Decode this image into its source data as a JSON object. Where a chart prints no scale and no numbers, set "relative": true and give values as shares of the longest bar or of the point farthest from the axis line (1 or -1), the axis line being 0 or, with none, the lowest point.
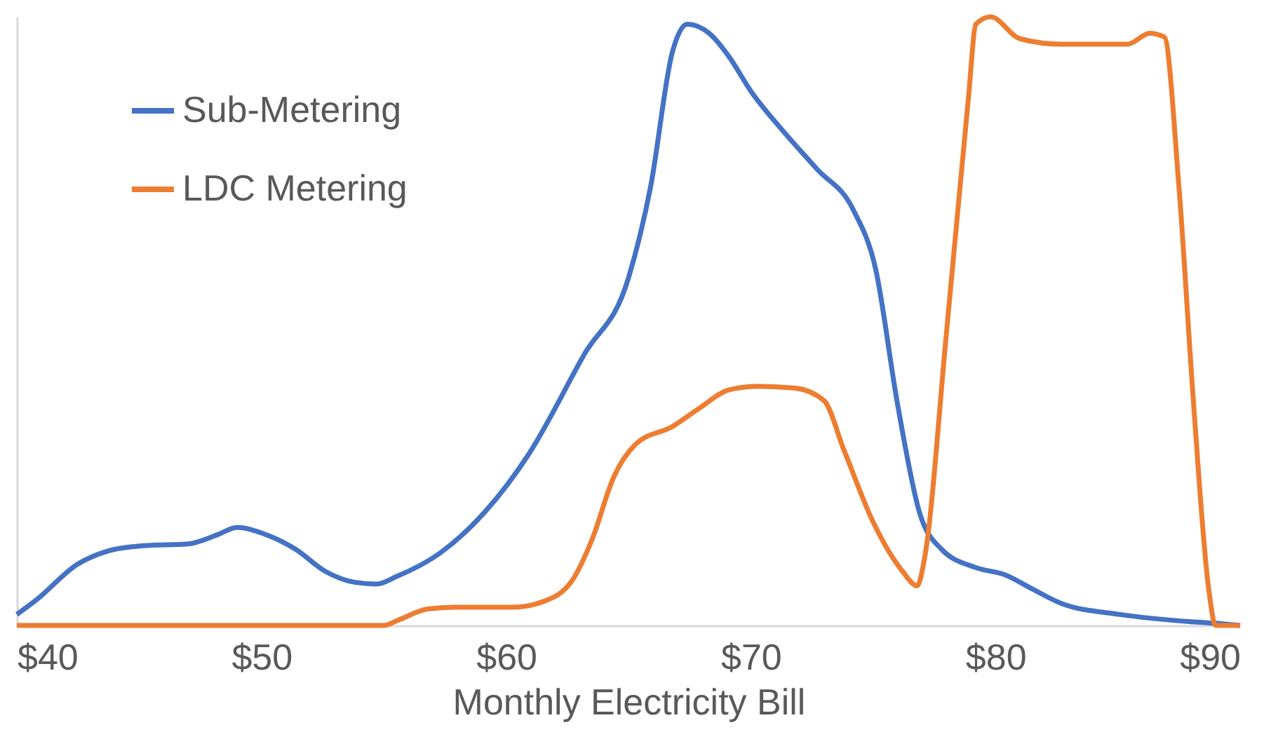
{
  "chart_data": {
    "type": "line",
    "xlabel": "Monthly Electricity Bill",
    "relative": true,
    "legend": "top left",
    "xlim": [
      40,
      90
    ],
    "xticks": [
      {
        "value": 40,
        "label": "$40"
      },
      {
        "value": 50,
        "label": "$50"
      },
      {
        "value": 60,
        "label": "$60"
      },
      {
        "value": 70,
        "label": "$70"
      },
      {
        "value": 80,
        "label": "$80"
      },
      {
        "value": 90,
        "label": "$90"
      }
    ],
    "series": [
      {
        "name": "Sub-Metering",
        "color": "#4472c4",
        "x": [
          40.0,
          40.8,
          42.5,
          43.7,
          45.2,
          47.0,
          48.2,
          49.0,
          50.2,
          51.4,
          52.6,
          53.8,
          54.7,
          55.5,
          57.3,
          59.1,
          60.9,
          63.2,
          65.0,
          65.9,
          66.8,
          67.4,
          68.3,
          69.1,
          70.0,
          71.2,
          72.7,
          74.2,
          75.1,
          76.0,
          76.9,
          77.8,
          79.2,
          80.4,
          81.5,
          82.7,
          85.1,
          88.0,
          89.2,
          90.0
        ],
        "values": [
          0.018,
          0.042,
          0.101,
          0.122,
          0.131,
          0.134,
          0.149,
          0.161,
          0.149,
          0.125,
          0.089,
          0.071,
          0.068,
          0.08,
          0.119,
          0.185,
          0.28,
          0.446,
          0.571,
          0.72,
          0.943,
          0.988,
          0.973,
          0.935,
          0.878,
          0.818,
          0.75,
          0.682,
          0.586,
          0.363,
          0.185,
          0.125,
          0.095,
          0.083,
          0.06,
          0.036,
          0.018,
          0.006,
          0.003,
          0
        ]
      },
      {
        "name": "LDC Metering",
        "color": "#ed7d31",
        "x": [
          40.0,
          55.0,
          55.6,
          56.8,
          57.9,
          60.3,
          61.5,
          62.7,
          63.5,
          64.4,
          65.3,
          66.8,
          67.9,
          69.1,
          70.3,
          71.8,
          73.0,
          73.8,
          75.0,
          76.2,
          76.8,
          77.1,
          78.0,
          78.9,
          79.2,
          79.8,
          81.0,
          82.7,
          84.5,
          85.4,
          86.3,
          86.9,
          87.5,
          88.1,
          88.7,
          89.0,
          90.0
        ],
        "values": [
          0,
          0,
          0.009,
          0.027,
          0.03,
          0.03,
          0.039,
          0.074,
          0.14,
          0.244,
          0.298,
          0.327,
          0.357,
          0.387,
          0.393,
          0.39,
          0.369,
          0.289,
          0.17,
          0.089,
          0.065,
          0.11,
          0.482,
          0.869,
          0.988,
          1,
          0.964,
          0.955,
          0.955,
          0.955,
          0.973,
          0.967,
          0.72,
          0.363,
          0.065,
          0,
          0
        ]
      }
    ]
  }
}
